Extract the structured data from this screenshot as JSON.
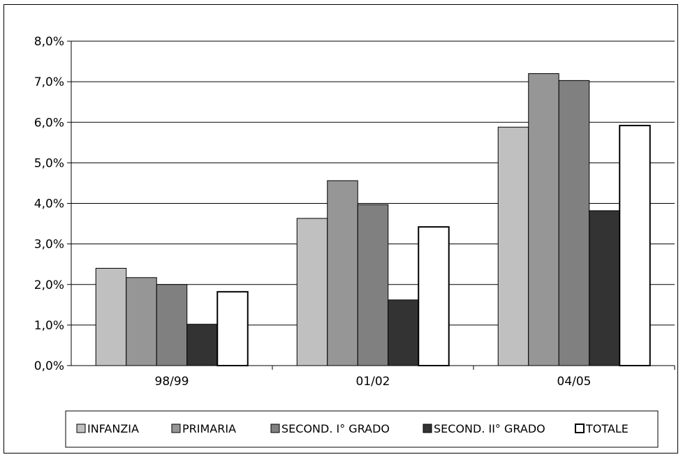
{
  "chart_data": {
    "type": "bar",
    "categories": [
      "98/99",
      "01/02",
      "04/05"
    ],
    "series": [
      {
        "name": "INFANZIA",
        "color": "#c0c0c0",
        "values": [
          2.4,
          3.63,
          5.88
        ]
      },
      {
        "name": "PRIMARIA",
        "color": "#969696",
        "values": [
          2.17,
          4.56,
          7.2
        ]
      },
      {
        "name": "SECOND. I° GRADO",
        "color": "#808080",
        "values": [
          2.0,
          3.97,
          7.03
        ]
      },
      {
        "name": "SECOND. II° GRADO",
        "color": "#333333",
        "values": [
          1.02,
          1.62,
          3.82
        ]
      },
      {
        "name": "TOTALE",
        "color": "#ffffff",
        "values": [
          1.82,
          3.42,
          5.92
        ]
      }
    ],
    "ylim": [
      0,
      8
    ],
    "yticks": [
      "0,0%",
      "1,0%",
      "2,0%",
      "3,0%",
      "4,0%",
      "5,0%",
      "6,0%",
      "7,0%",
      "8,0%"
    ],
    "grid": true,
    "legend_position": "bottom"
  }
}
